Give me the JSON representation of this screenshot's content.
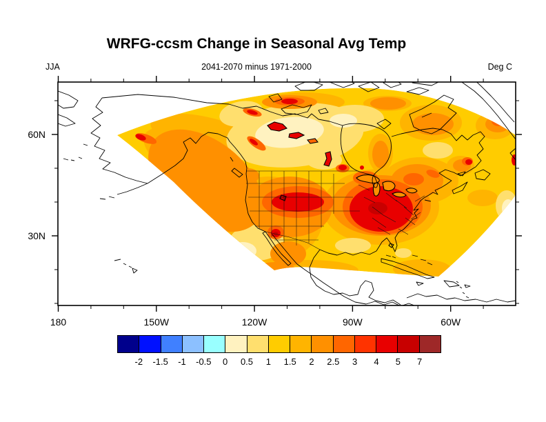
{
  "title": "WRFG-ccsm Change in Seasonal Avg Temp",
  "header": {
    "season_label": "JJA",
    "subtitle": "2041-2070 minus 1971-2000",
    "units_label": "Deg C"
  },
  "axes": {
    "lon_tick_labels": [
      "180",
      "150W",
      "120W",
      "90W",
      "60W"
    ],
    "lat_tick_labels": [
      "60N",
      "30N"
    ]
  },
  "colorbar": {
    "labels": [
      "-2",
      "-1.5",
      "-1",
      "-0.5",
      "0",
      "0.5",
      "1",
      "1.5",
      "2",
      "2.5",
      "3",
      "4",
      "5",
      "7"
    ],
    "colors": [
      "#00008c",
      "#0010ff",
      "#4080ff",
      "#8cc0ff",
      "#99ffff",
      "#fff2c0",
      "#ffdf6e",
      "#ffcc00",
      "#ffb400",
      "#ff9000",
      "#ff6600",
      "#ff3300",
      "#e80000",
      "#c80000",
      "#9e2828"
    ]
  },
  "chart_data": {
    "type": "heatmap",
    "subtype": "filled-contour-map",
    "title": "WRFG-ccsm Change in Seasonal Avg Temp",
    "subtitle": "2041-2070 minus 1971-2000",
    "season": "JJA",
    "units": "Deg C",
    "model": "WRFG-ccsm",
    "period_difference": "2041-2070 minus 1971-2000",
    "map_region": "North America, regional climate model fan-shaped domain; white = outside domain",
    "lon_ticks": [
      "180",
      "150W",
      "120W",
      "90W",
      "60W"
    ],
    "lat_ticks": [
      "60N",
      "30N"
    ],
    "contour_levels": [
      -2,
      -1.5,
      -1,
      -0.5,
      0,
      0.5,
      1,
      1.5,
      2,
      2.5,
      3,
      4,
      5,
      7
    ],
    "palette_colors": [
      "#00008c",
      "#0010ff",
      "#4080ff",
      "#8cc0ff",
      "#99ffff",
      "#fff2c0",
      "#ffdf6e",
      "#ffcc00",
      "#ffb400",
      "#ff9000",
      "#ff6600",
      "#ff3300",
      "#e80000",
      "#c80000",
      "#9e2828"
    ],
    "legend_position": "bottom",
    "value_summary": [
      {
        "region": "Central Canada interior (Prairies, NWT)",
        "avg_temp_change_degC": "0 to 1"
      },
      {
        "region": "Most of domain (Canada, coasts, oceans)",
        "avg_temp_change_degC": "1 to 2"
      },
      {
        "region": "Western US interior (Great Basin, Colorado Plateau, Rockies)",
        "avg_temp_change_degC": "2.5 to 4"
      },
      {
        "region": "Midwest / Ohio Valley / Southeast US",
        "avg_temp_change_degC": "3 to 5"
      },
      {
        "region": "Local hotspots (northern Canada lakes, Great Salt Lake, NW Mexico, south Alaska coast)",
        "avg_temp_change_degC": "4 to 7"
      },
      {
        "region": "Outside model domain",
        "avg_temp_change_degC": "no data (white)"
      }
    ]
  }
}
